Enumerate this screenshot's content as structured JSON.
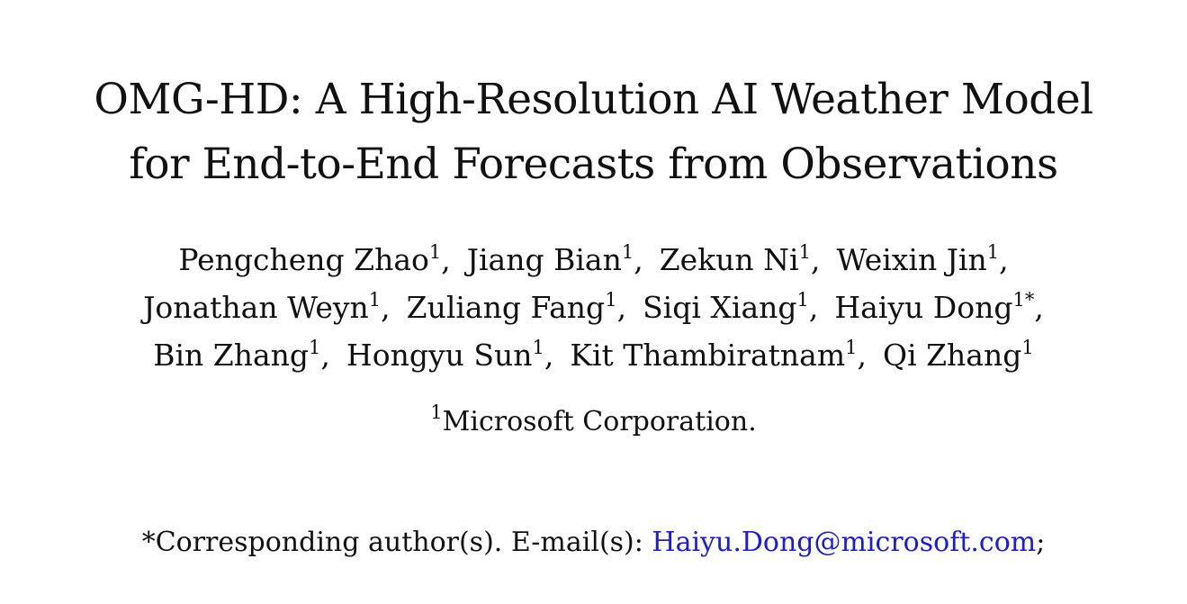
{
  "title": {
    "line1": "OMG-HD: A High-Resolution AI Weather Model",
    "line2": "for End-to-End Forecasts from Observations"
  },
  "authors": [
    [
      {
        "name": "Pengcheng Zhao",
        "mark": "1",
        "trail": ","
      },
      {
        "name": "Jiang Bian",
        "mark": "1",
        "trail": ","
      },
      {
        "name": "Zekun Ni",
        "mark": "1",
        "trail": ","
      },
      {
        "name": "Weixin Jin",
        "mark": "1",
        "trail": ","
      }
    ],
    [
      {
        "name": "Jonathan Weyn",
        "mark": "1",
        "trail": ","
      },
      {
        "name": "Zuliang Fang",
        "mark": "1",
        "trail": ","
      },
      {
        "name": "Siqi Xiang",
        "mark": "1",
        "trail": ","
      },
      {
        "name": "Haiyu Dong",
        "mark": "1*",
        "trail": ","
      }
    ],
    [
      {
        "name": "Bin Zhang",
        "mark": "1",
        "trail": ","
      },
      {
        "name": "Hongyu Sun",
        "mark": "1",
        "trail": ","
      },
      {
        "name": "Kit Thambiratnam",
        "mark": "1",
        "trail": ","
      },
      {
        "name": "Qi Zhang",
        "mark": "1",
        "trail": ""
      }
    ]
  ],
  "affiliation": {
    "mark": "1",
    "text": "Microsoft Corporation."
  },
  "corresponding": {
    "prefix": "*Corresponding author(s). E-mail(s): ",
    "email": "Haiyu.Dong@microsoft.com",
    "suffix": ";"
  },
  "colors": {
    "link": "#1a1ae6",
    "text": "#111111"
  }
}
